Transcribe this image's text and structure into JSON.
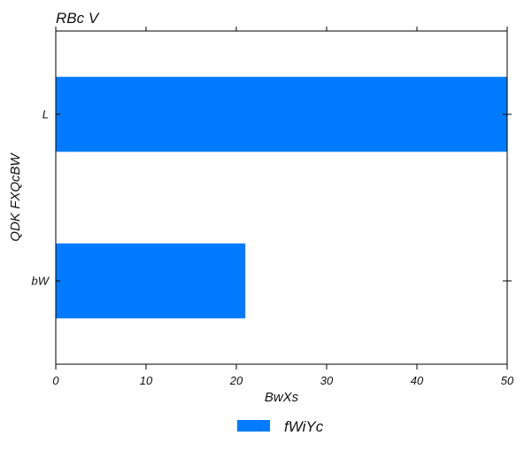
{
  "chart_data": {
    "type": "bar",
    "orientation": "horizontal",
    "title": "RBc V",
    "xlabel": "BwXs",
    "ylabel": "QDK FXQcBW",
    "categories": [
      "L",
      "bW"
    ],
    "series": [
      {
        "name": "fWiYc",
        "values": [
          50,
          21
        ],
        "color": "#007bff"
      }
    ],
    "xlim": [
      0,
      50
    ],
    "xticks": [
      0,
      10,
      20,
      30,
      40,
      50
    ],
    "grid": false,
    "legend_position": "bottom-center"
  }
}
